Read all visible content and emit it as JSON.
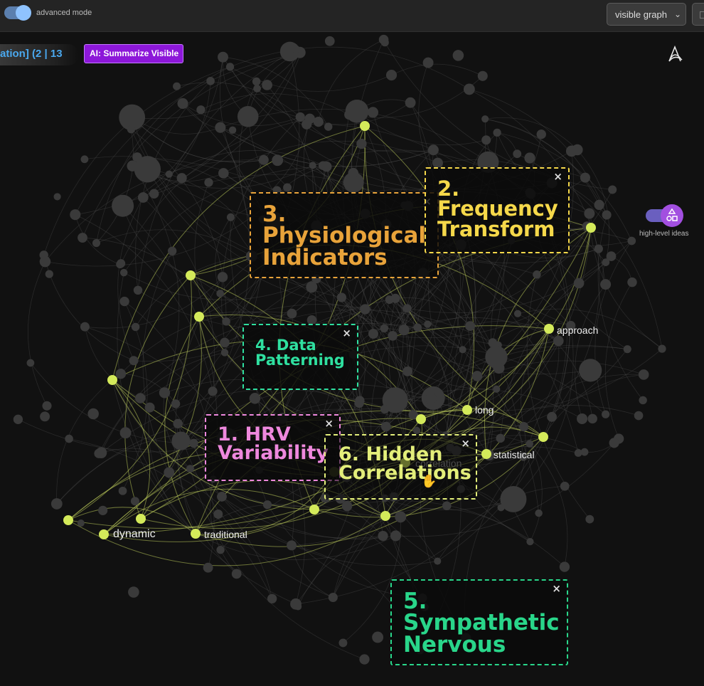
{
  "toolbar": {
    "advanced_mode_label": "advanced mode",
    "advanced_mode_on": true,
    "view_select_value": "visible graph"
  },
  "status_counter": "ation] (2 | 13",
  "ai_button_label": "AI: Summarize Visible",
  "high_level_ideas_label": "high-level ideas",
  "node_labels": {
    "approach": "approach",
    "long": "long",
    "statistical": "statistical",
    "correlation": "correlation",
    "dynamic": "dynamic",
    "traditional": "traditional",
    "hrv_partial": "ility"
  },
  "topics": [
    {
      "title": "3.\nPhysiological\nIndicators",
      "color": "#e8a33a",
      "close": "×"
    },
    {
      "title": "2.\nFrequency\nTransform",
      "color": "#f5d84a",
      "close": "×"
    },
    {
      "title": "4. Data\nPatterning",
      "color": "#2fe0a0",
      "close": "×"
    },
    {
      "title": "1. HRV\nVariability",
      "color": "#ee88dd",
      "close": "×"
    },
    {
      "title": "6. Hidden\nCorrelations",
      "color": "#e3ee7a",
      "close": "×"
    },
    {
      "title": "5.\nSympathetic\nNervous",
      "color": "#29d68a",
      "close": "×"
    }
  ],
  "colors": {
    "background": "#111111",
    "node_default": "#3a3a3a",
    "node_highlight": "#d4ea5a",
    "edge_default": "#555555",
    "edge_highlight": "#b9c95a"
  }
}
